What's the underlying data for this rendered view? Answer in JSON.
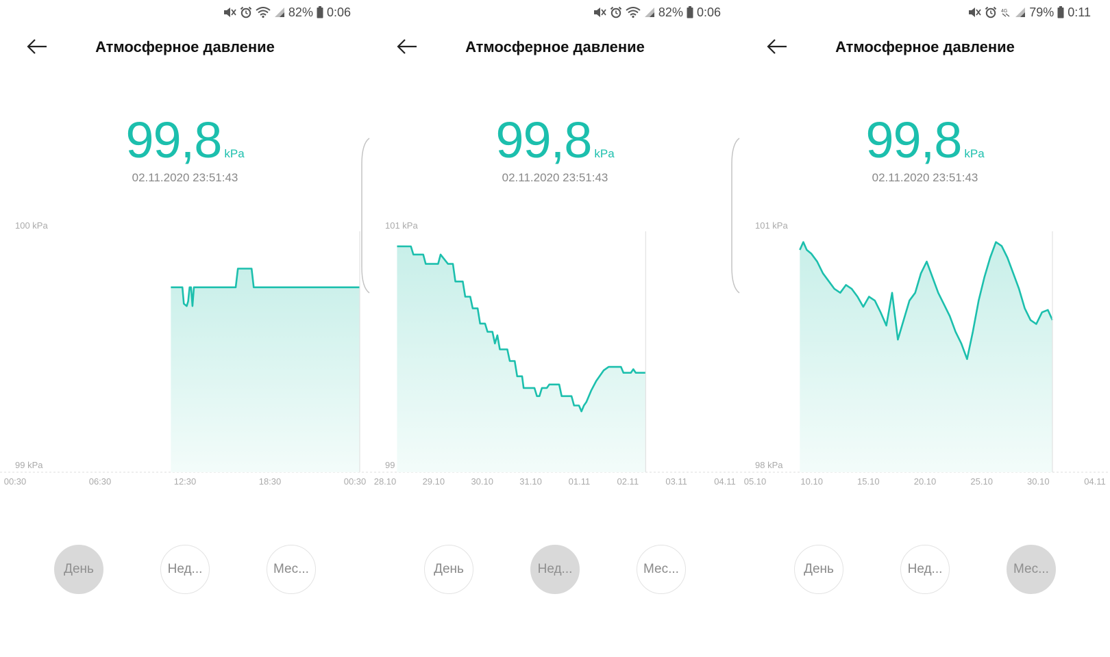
{
  "colors": {
    "accent": "#1cbfad",
    "fill_top": "#c8efe9",
    "fill_bottom": "#f3fcfa",
    "active_tab": "#d9d9d9"
  },
  "panels": [
    {
      "status": {
        "battery": "82%",
        "time": "0:06",
        "network": "wifi"
      },
      "title": "Атмосферное давление",
      "value": "99,8",
      "unit": "kPa",
      "timestamp": "02.11.2020 23:51:43",
      "tabs": [
        "День",
        "Нед...",
        "Мес..."
      ],
      "active_tab": 0,
      "chart_data": {
        "type": "area",
        "y_max_label": "100 kPa",
        "y_min_label": "99 kPa",
        "ylim": [
          99,
          100
        ],
        "x_ticks": [
          "00:30",
          "06:30",
          "12:30",
          "18:30",
          "00:30"
        ],
        "xlim": [
          0,
          24
        ],
        "points": [
          [
            10.9,
            99.79
          ],
          [
            11.7,
            99.79
          ],
          [
            11.8,
            99.72
          ],
          [
            12.0,
            99.71
          ],
          [
            12.1,
            99.73
          ],
          [
            12.2,
            99.79
          ],
          [
            12.3,
            99.79
          ],
          [
            12.4,
            99.71
          ],
          [
            12.5,
            99.79
          ],
          [
            15.4,
            99.79
          ],
          [
            15.55,
            99.87
          ],
          [
            16.5,
            99.87
          ],
          [
            16.65,
            99.79
          ],
          [
            24.0,
            99.79
          ]
        ]
      }
    },
    {
      "status": {
        "battery": "82%",
        "time": "0:06",
        "network": "wifi"
      },
      "title": "Атмосферное давление",
      "value": "99,8",
      "unit": "kPa",
      "timestamp": "02.11.2020 23:51:43",
      "tabs": [
        "День",
        "Нед...",
        "Мес..."
      ],
      "active_tab": 1,
      "chart_data": {
        "type": "area",
        "y_max_label": "101 kPa",
        "y_min_label": "99 kPa",
        "ylim": [
          99,
          101
        ],
        "x_ticks": [
          "28.10",
          "29.10",
          "30.10",
          "31.10",
          "01.11",
          "02.11",
          "03.11",
          "04.11"
        ],
        "xlim": [
          0,
          7
        ],
        "points": [
          [
            0.27,
            100.93
          ],
          [
            0.55,
            100.93
          ],
          [
            0.6,
            100.86
          ],
          [
            0.8,
            100.86
          ],
          [
            0.85,
            100.78
          ],
          [
            1.1,
            100.78
          ],
          [
            1.15,
            100.86
          ],
          [
            1.3,
            100.78
          ],
          [
            1.4,
            100.78
          ],
          [
            1.45,
            100.63
          ],
          [
            1.6,
            100.63
          ],
          [
            1.65,
            100.5
          ],
          [
            1.75,
            100.5
          ],
          [
            1.8,
            100.4
          ],
          [
            1.9,
            100.4
          ],
          [
            1.95,
            100.27
          ],
          [
            2.05,
            100.27
          ],
          [
            2.1,
            100.2
          ],
          [
            2.2,
            100.2
          ],
          [
            2.25,
            100.1
          ],
          [
            2.3,
            100.17
          ],
          [
            2.35,
            100.05
          ],
          [
            2.5,
            100.05
          ],
          [
            2.55,
            99.95
          ],
          [
            2.65,
            99.95
          ],
          [
            2.7,
            99.82
          ],
          [
            2.75,
            99.82
          ],
          [
            2.8,
            99.82
          ],
          [
            2.83,
            99.72
          ],
          [
            3.0,
            99.72
          ],
          [
            3.05,
            99.72
          ],
          [
            3.1,
            99.65
          ],
          [
            3.15,
            99.65
          ],
          [
            3.2,
            99.72
          ],
          [
            3.3,
            99.72
          ],
          [
            3.35,
            99.75
          ],
          [
            3.55,
            99.75
          ],
          [
            3.6,
            99.65
          ],
          [
            3.8,
            99.65
          ],
          [
            3.85,
            99.57
          ],
          [
            3.95,
            99.57
          ],
          [
            4.0,
            99.52
          ],
          [
            4.05,
            99.57
          ],
          [
            4.1,
            99.6
          ],
          [
            4.2,
            99.7
          ],
          [
            4.3,
            99.78
          ],
          [
            4.45,
            99.87
          ],
          [
            4.55,
            99.9
          ],
          [
            4.8,
            99.9
          ],
          [
            4.85,
            99.85
          ],
          [
            5.0,
            99.85
          ],
          [
            5.05,
            99.88
          ],
          [
            5.1,
            99.85
          ],
          [
            5.3,
            99.85
          ]
        ],
        "plot_end": 5.3
      }
    },
    {
      "status": {
        "battery": "79%",
        "time": "0:11",
        "network": "4G"
      },
      "title": "Атмосферное давление",
      "value": "99,8",
      "unit": "kPa",
      "timestamp": "02.11.2020 23:51:43",
      "tabs": [
        "День",
        "Нед...",
        "Мес..."
      ],
      "active_tab": 2,
      "chart_data": {
        "type": "area",
        "y_max_label": "101 kPa",
        "y_min_label": "98 kPa",
        "ylim": [
          98,
          101
        ],
        "x_ticks": [
          "05.10",
          "10.10",
          "15.10",
          "20.10",
          "25.10",
          "30.10",
          "04.11"
        ],
        "xlim": [
          0,
          30
        ],
        "points": [
          [
            4.0,
            100.85
          ],
          [
            4.3,
            100.95
          ],
          [
            4.6,
            100.85
          ],
          [
            5.0,
            100.8
          ],
          [
            5.5,
            100.7
          ],
          [
            6.0,
            100.55
          ],
          [
            6.5,
            100.45
          ],
          [
            7.0,
            100.35
          ],
          [
            7.5,
            100.3
          ],
          [
            8.0,
            100.4
          ],
          [
            8.5,
            100.35
          ],
          [
            9.0,
            100.25
          ],
          [
            9.5,
            100.12
          ],
          [
            10.0,
            100.25
          ],
          [
            10.5,
            100.2
          ],
          [
            11.0,
            100.05
          ],
          [
            11.5,
            99.88
          ],
          [
            12.0,
            100.3
          ],
          [
            12.5,
            99.7
          ],
          [
            13.0,
            99.95
          ],
          [
            13.5,
            100.2
          ],
          [
            14.0,
            100.3
          ],
          [
            14.5,
            100.55
          ],
          [
            15.0,
            100.7
          ],
          [
            15.5,
            100.5
          ],
          [
            16.0,
            100.3
          ],
          [
            16.5,
            100.15
          ],
          [
            17.0,
            100.0
          ],
          [
            17.5,
            99.8
          ],
          [
            18.0,
            99.65
          ],
          [
            18.5,
            99.45
          ],
          [
            19.0,
            99.8
          ],
          [
            19.5,
            100.2
          ],
          [
            20.0,
            100.5
          ],
          [
            20.5,
            100.75
          ],
          [
            21.0,
            100.95
          ],
          [
            21.5,
            100.9
          ],
          [
            22.0,
            100.75
          ],
          [
            22.5,
            100.55
          ],
          [
            23.0,
            100.35
          ],
          [
            23.5,
            100.1
          ],
          [
            24.0,
            99.95
          ],
          [
            24.5,
            99.9
          ],
          [
            25.0,
            100.05
          ],
          [
            25.5,
            100.08
          ],
          [
            25.9,
            99.95
          ]
        ],
        "plot_end": 25.9
      }
    }
  ]
}
